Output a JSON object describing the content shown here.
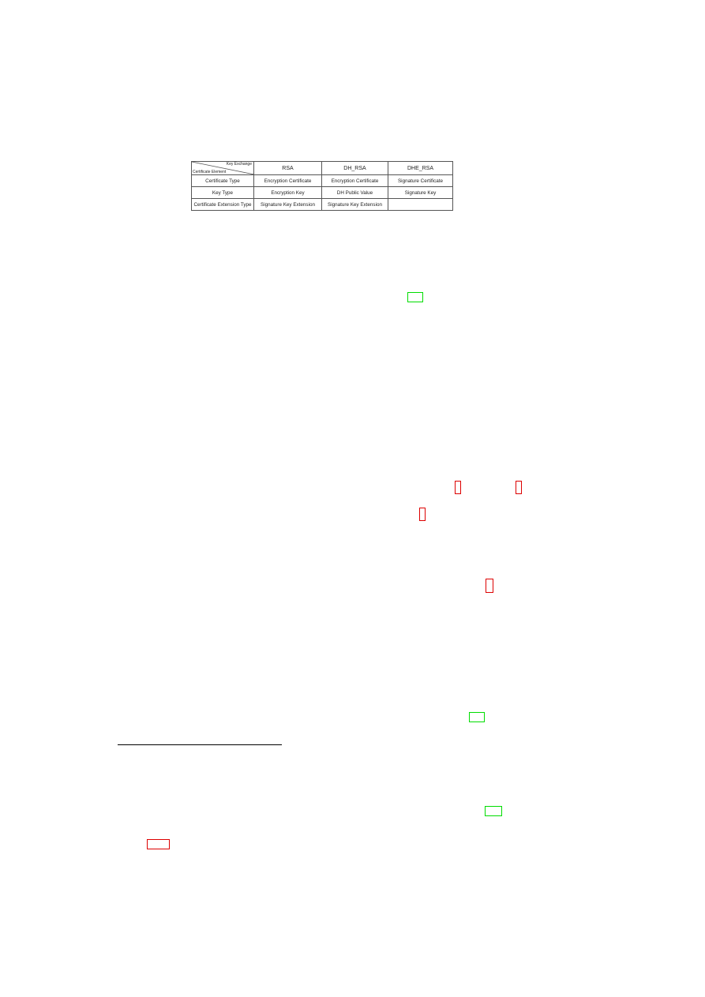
{
  "table": {
    "corner_top": "Key Exchange",
    "corner_bottom": "Certificate Element",
    "columns": [
      "RSA",
      "DH_RSA",
      "DHE_RSA"
    ],
    "rows": [
      {
        "label": "Certificate Type",
        "cells": [
          "Encryption Certificate",
          "Encryption Certificate",
          "Signature Certificate"
        ]
      },
      {
        "label": "Key Type",
        "cells": [
          "Encryption Key",
          "DH Public Value",
          "Signature Key"
        ]
      },
      {
        "label": "Certificate Extension Type",
        "cells": [
          "Signature Key Extension",
          "Signature Key Extension",
          ""
        ]
      }
    ]
  },
  "link_colors": {
    "citation": "#00dd00",
    "reference": "#dd0000"
  }
}
